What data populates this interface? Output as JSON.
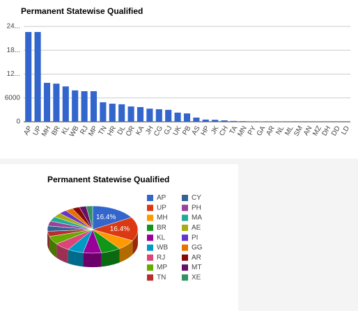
{
  "chart_data": [
    {
      "type": "bar",
      "title": "Permanent Statewise Qualified",
      "categories": [
        "AP",
        "UP",
        "MH",
        "BR",
        "KL",
        "WB",
        "RJ",
        "MP",
        "TN",
        "HR",
        "DL",
        "OR",
        "KA",
        "JH",
        "CG",
        "GJ",
        "UK",
        "PB",
        "AS",
        "HP",
        "JK",
        "CH",
        "TA",
        "MN",
        "PY",
        "GA",
        "AR",
        "NL",
        "ML",
        "SM",
        "AN",
        "MZ",
        "DH",
        "DD",
        "LD"
      ],
      "values": [
        22600,
        22600,
        9800,
        9600,
        8900,
        7900,
        7700,
        7700,
        4900,
        4550,
        4400,
        3850,
        3700,
        3300,
        3150,
        3000,
        2300,
        2100,
        1050,
        550,
        500,
        350,
        200,
        150,
        100,
        80,
        60,
        40,
        30,
        20,
        20,
        15,
        10,
        10,
        5
      ],
      "color": "#3366cc",
      "ylim": [
        0,
        24000
      ],
      "yticks": [
        0,
        6000,
        {
          "value": 12000,
          "label": "12..."
        },
        {
          "value": 18000,
          "label": "18..."
        },
        {
          "value": 24000,
          "label": "24..."
        }
      ],
      "grid": true
    },
    {
      "type": "pie",
      "title": "Permanent Statewise Qualified",
      "is3D": true,
      "legend": "right",
      "categories": [
        "AP",
        "UP",
        "MH",
        "BR",
        "KL",
        "WB",
        "RJ",
        "MP",
        "TN",
        "CY",
        "PH",
        "MA",
        "AE",
        "PI",
        "GG",
        "AR",
        "MT",
        "XE"
      ],
      "values": [
        16.4,
        16.4,
        7.1,
        7.0,
        6.5,
        5.7,
        5.6,
        5.6,
        3.6,
        3.6,
        3.4,
        3.2,
        3.0,
        2.8,
        2.7,
        2.6,
        2.5,
        2.3
      ],
      "value_labels": [
        "16.4%",
        "16.4%",
        null,
        null,
        null,
        null,
        null,
        null,
        null,
        null,
        null,
        null,
        null,
        null,
        null,
        null,
        null,
        null
      ],
      "colors": [
        "#3366cc",
        "#dc3912",
        "#ff9900",
        "#109618",
        "#990099",
        "#0099c6",
        "#dd4477",
        "#66aa00",
        "#b82e2e",
        "#316395",
        "#994499",
        "#22aa99",
        "#aaaa11",
        "#6633cc",
        "#e67300",
        "#8b0707",
        "#651067",
        "#329262"
      ]
    }
  ]
}
